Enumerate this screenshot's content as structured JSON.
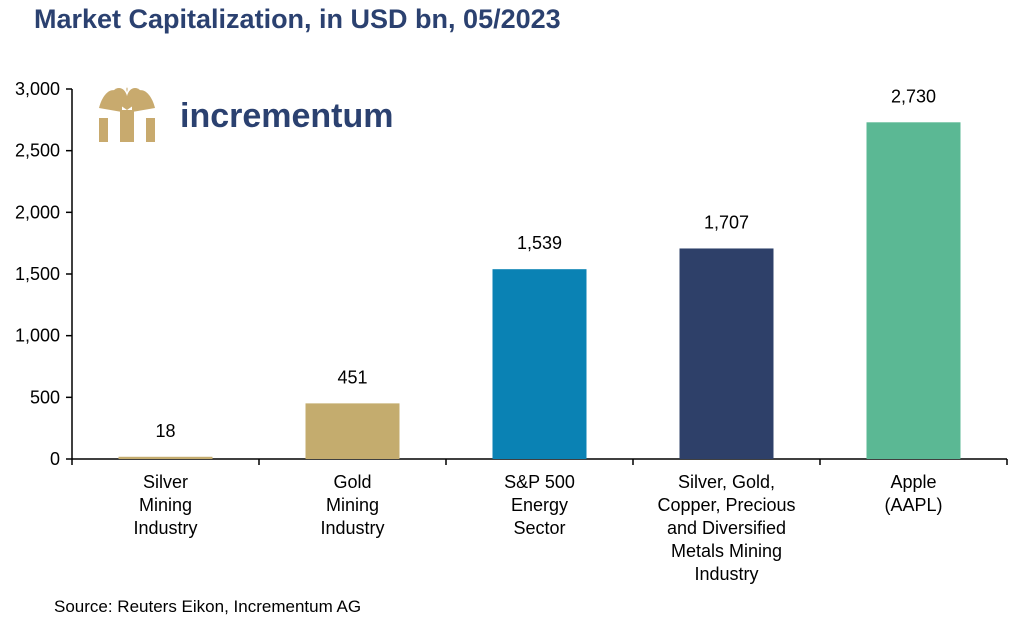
{
  "source": "Source: Reuters Eikon, Incrementum AG",
  "logo": {
    "text": "incrementum",
    "icon": "tree-icon",
    "icon_color": "#c8aa6e",
    "text_color": "#2b4170"
  },
  "chart_data": {
    "type": "bar",
    "title": "Market Capitalization, in USD bn, 05/2023",
    "xlabel": "",
    "ylabel": "",
    "ylim": [
      0,
      3000
    ],
    "yticks": [
      0,
      500,
      1000,
      1500,
      2000,
      2500,
      3000
    ],
    "ytick_labels": [
      "0",
      "500",
      "1,000",
      "1,500",
      "2,000",
      "2,500",
      "3,000"
    ],
    "grid": false,
    "legend": "none",
    "categories": [
      [
        "Silver",
        "Mining",
        "Industry"
      ],
      [
        "Gold",
        "Mining",
        "Industry"
      ],
      [
        "S&P 500",
        "Energy",
        "Sector"
      ],
      [
        "Silver, Gold,",
        "Copper, Precious",
        "and Diversified",
        "Metals Mining",
        "Industry"
      ],
      [
        "Apple",
        "(AAPL)"
      ]
    ],
    "values": [
      18,
      451,
      1539,
      1707,
      2730
    ],
    "value_labels": [
      "18",
      "451",
      "1,539",
      "1,707",
      "2,730"
    ],
    "colors": [
      "#c4ac6e",
      "#c4ac6e",
      "#0a82b4",
      "#2e4069",
      "#5bb894"
    ]
  }
}
